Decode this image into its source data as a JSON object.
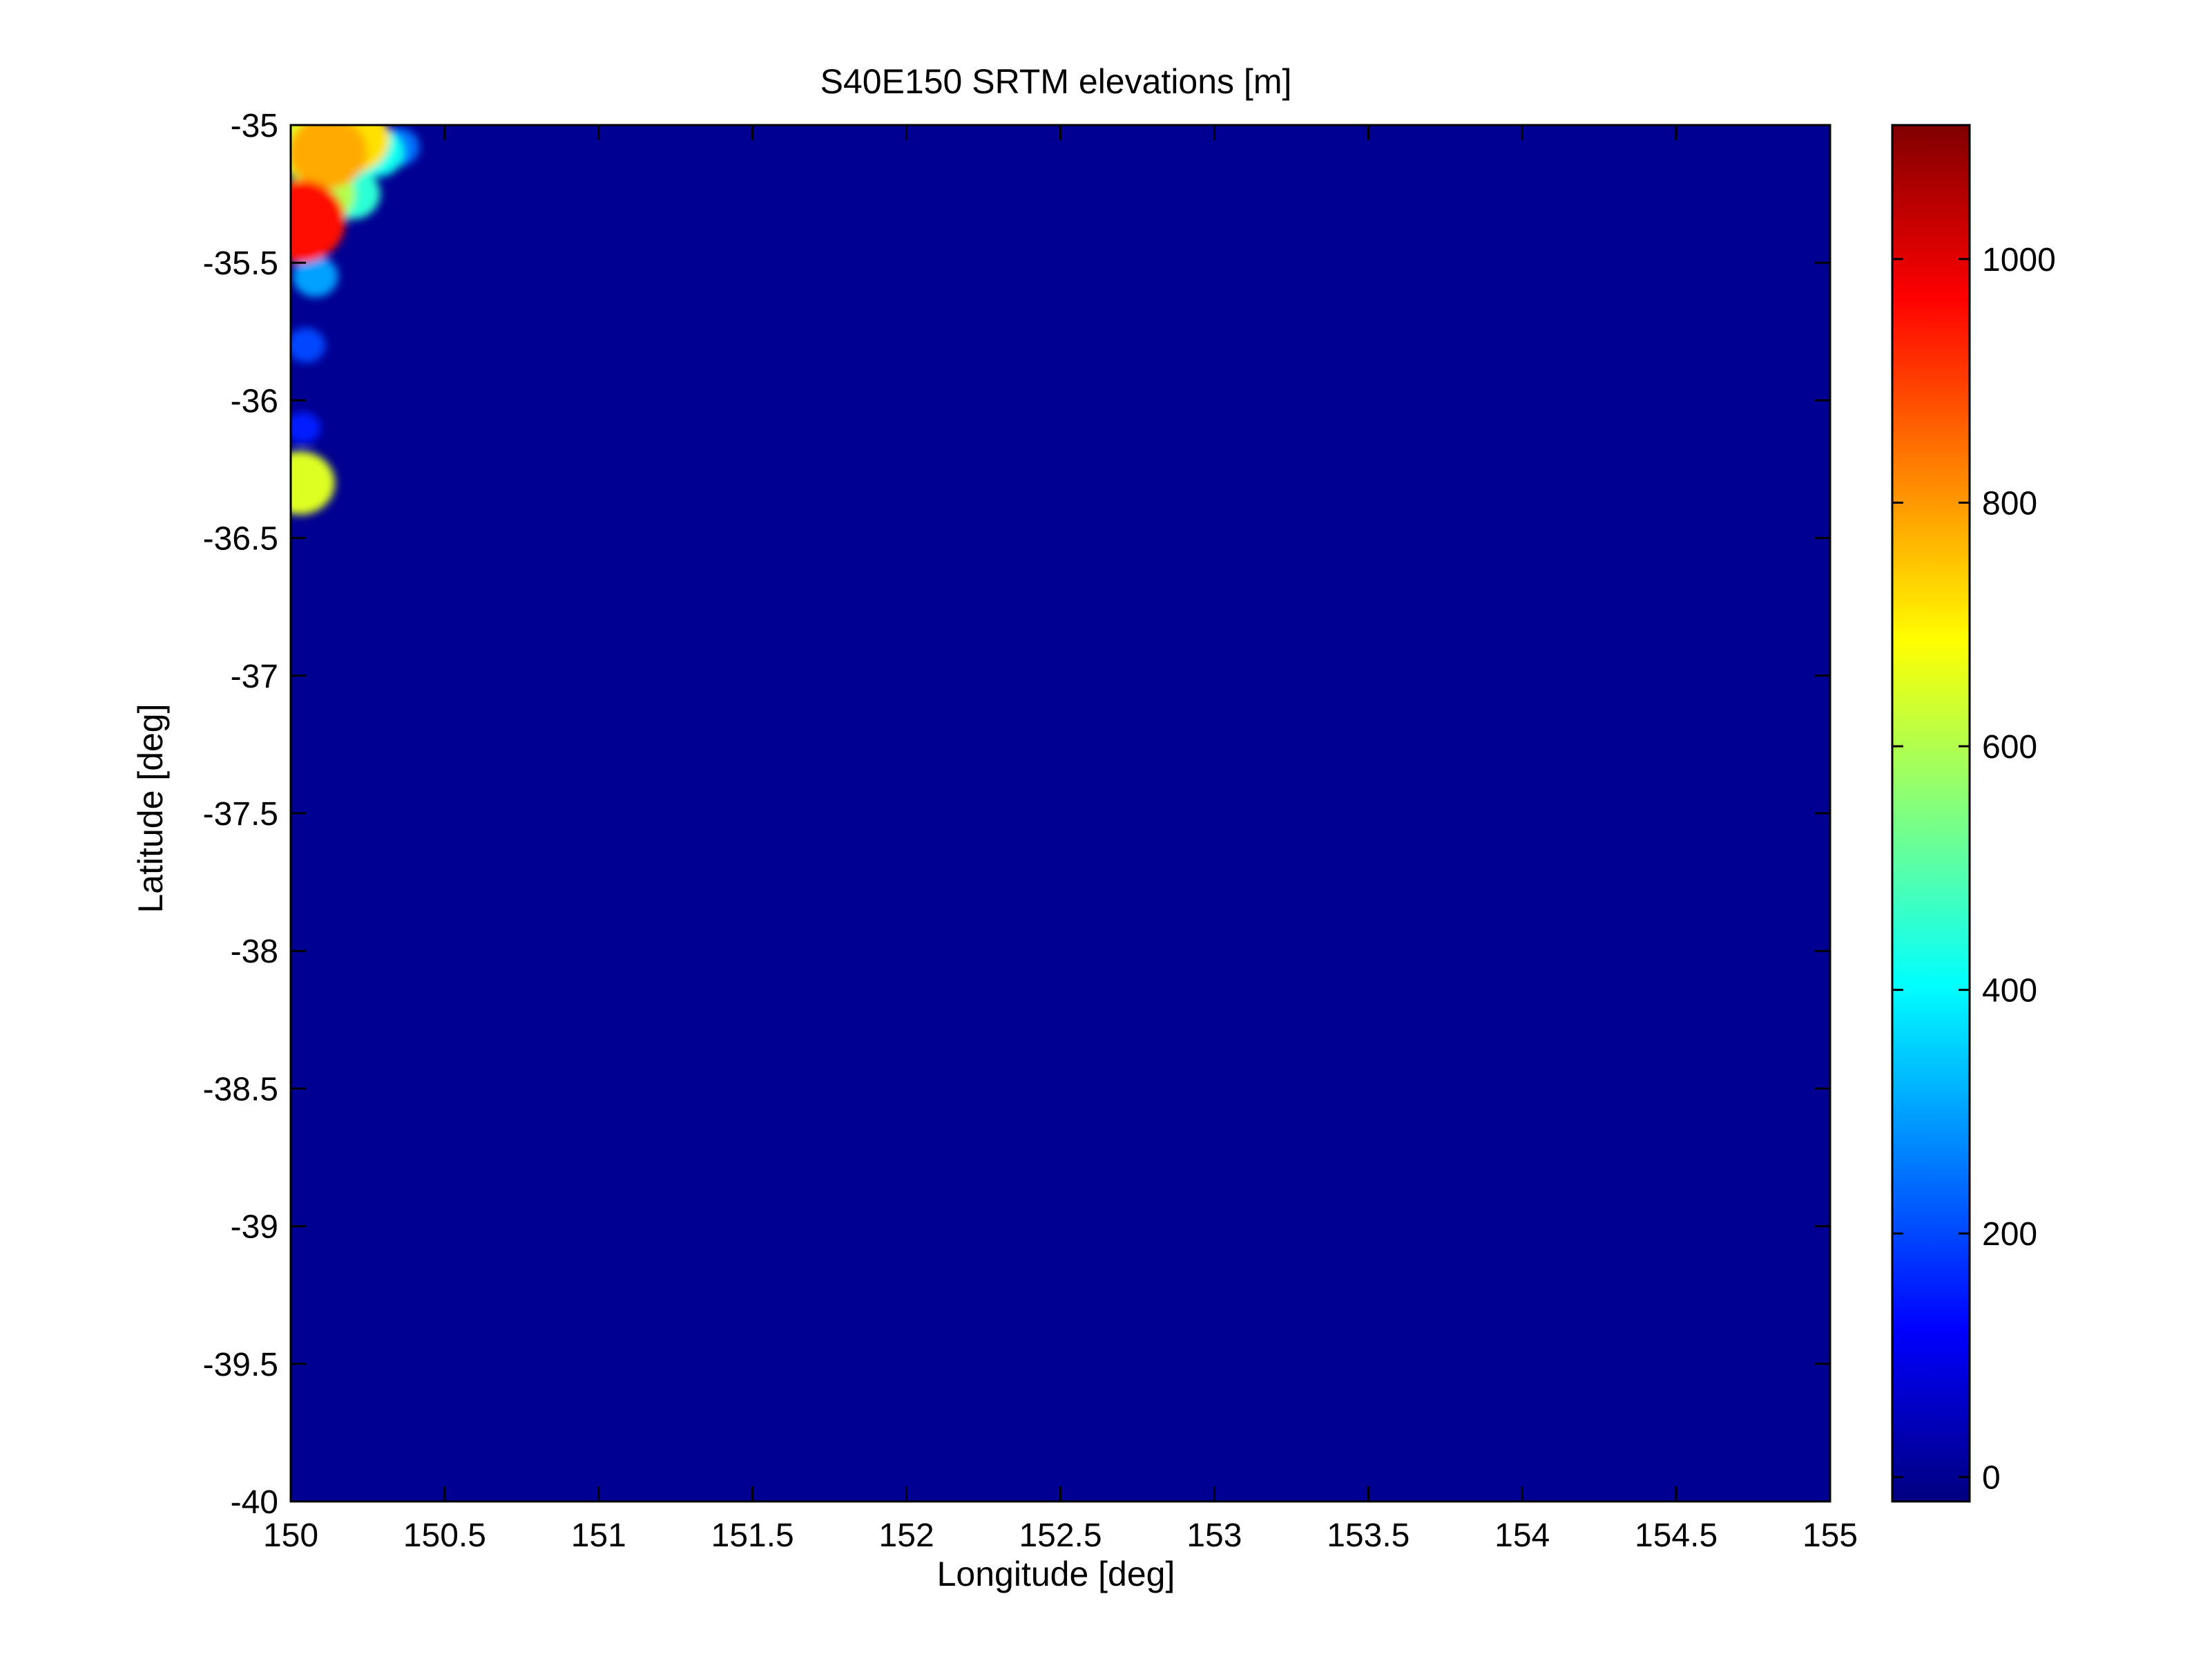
{
  "chart_data": {
    "type": "heatmap",
    "title": "S40E150 SRTM elevations [m]",
    "xlabel": "Longitude [deg]",
    "ylabel": "Latitude [deg]",
    "xlim": [
      150,
      155
    ],
    "ylim": [
      -40,
      -35
    ],
    "x_ticks": [
      150,
      150.5,
      151,
      151.5,
      152,
      152.5,
      153,
      153.5,
      154,
      154.5,
      155
    ],
    "x_tick_labels": [
      "150",
      "150.5",
      "151",
      "151.5",
      "152",
      "152.5",
      "153",
      "153.5",
      "154",
      "154.5",
      "155"
    ],
    "y_ticks": [
      -35,
      -35.5,
      -36,
      -36.5,
      -37,
      -37.5,
      -38,
      -38.5,
      -39,
      -39.5,
      -40
    ],
    "y_tick_labels": [
      "-35",
      "-35.5",
      "-36",
      "-36.5",
      "-37",
      "-37.5",
      "-38",
      "-38.5",
      "-39",
      "-39.5",
      "-40"
    ],
    "colorbar": {
      "colormap": "jet",
      "clim": [
        -20,
        1110
      ],
      "ticks": [
        0,
        200,
        400,
        600,
        800,
        1000
      ],
      "tick_labels": [
        "0",
        "200",
        "400",
        "600",
        "800",
        "1000"
      ]
    },
    "background_value": 0,
    "grid": false,
    "elevation_features": [
      {
        "lon": 150.12,
        "lat": -35.1,
        "value": 780
      },
      {
        "lon": 150.2,
        "lat": -35.05,
        "value": 720
      },
      {
        "lon": 150.05,
        "lat": -35.08,
        "value": 650
      },
      {
        "lon": 150.03,
        "lat": -35.35,
        "value": 950
      },
      {
        "lon": 150.1,
        "lat": -35.25,
        "value": 600
      },
      {
        "lon": 150.2,
        "lat": -35.25,
        "value": 450
      },
      {
        "lon": 150.28,
        "lat": -35.1,
        "value": 420
      },
      {
        "lon": 150.35,
        "lat": -35.08,
        "value": 250
      },
      {
        "lon": 150.08,
        "lat": -35.55,
        "value": 300
      },
      {
        "lon": 150.05,
        "lat": -35.8,
        "value": 200
      },
      {
        "lon": 150.03,
        "lat": -36.3,
        "value": 650
      },
      {
        "lon": 150.04,
        "lat": -36.1,
        "value": 150
      }
    ]
  }
}
